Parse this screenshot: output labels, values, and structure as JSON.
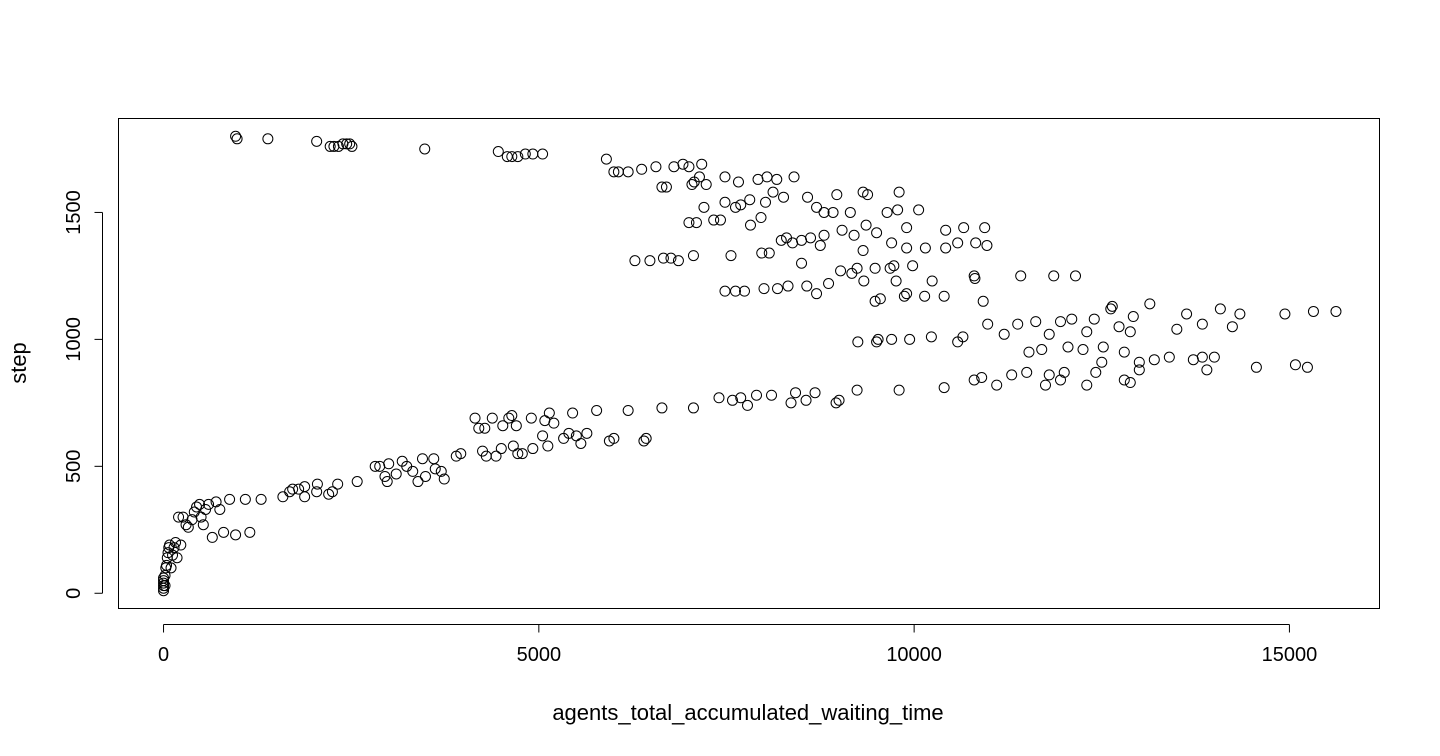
{
  "chart_data": {
    "type": "scatter",
    "title": "",
    "xlabel": "agents_total_accumulated_waiting_time",
    "ylabel": "step",
    "xlim": [
      -600,
      16200
    ],
    "ylim": [
      -60,
      1870
    ],
    "xticks": [
      0,
      5000,
      10000,
      15000
    ],
    "xtick_labels": [
      "0",
      "5000",
      "10000",
      "15000"
    ],
    "yticks": [
      0,
      500,
      1000,
      1500
    ],
    "ytick_labels": [
      "0",
      "500",
      "1000",
      "1500"
    ],
    "grid": false,
    "legend": "none",
    "marker": "open-circle",
    "color": "#000000",
    "points": [
      [
        0,
        10
      ],
      [
        0,
        20
      ],
      [
        0,
        30
      ],
      [
        0,
        40
      ],
      [
        0,
        50
      ],
      [
        0,
        60
      ],
      [
        20,
        30
      ],
      [
        20,
        70
      ],
      [
        30,
        100
      ],
      [
        40,
        110
      ],
      [
        50,
        140
      ],
      [
        60,
        160
      ],
      [
        70,
        180
      ],
      [
        80,
        190
      ],
      [
        100,
        100
      ],
      [
        120,
        150
      ],
      [
        140,
        180
      ],
      [
        160,
        200
      ],
      [
        180,
        140
      ],
      [
        200,
        300
      ],
      [
        230,
        190
      ],
      [
        260,
        300
      ],
      [
        300,
        270
      ],
      [
        330,
        260
      ],
      [
        380,
        290
      ],
      [
        410,
        320
      ],
      [
        440,
        340
      ],
      [
        480,
        350
      ],
      [
        500,
        300
      ],
      [
        530,
        270
      ],
      [
        560,
        330
      ],
      [
        600,
        350
      ],
      [
        650,
        220
      ],
      [
        700,
        360
      ],
      [
        750,
        330
      ],
      [
        800,
        240
      ],
      [
        880,
        370
      ],
      [
        960,
        230
      ],
      [
        1090,
        370
      ],
      [
        1150,
        240
      ],
      [
        1300,
        370
      ],
      [
        1590,
        380
      ],
      [
        1680,
        400
      ],
      [
        1720,
        410
      ],
      [
        1800,
        410
      ],
      [
        1880,
        420
      ],
      [
        1880,
        380
      ],
      [
        2040,
        400
      ],
      [
        2050,
        430
      ],
      [
        2200,
        390
      ],
      [
        2250,
        400
      ],
      [
        2320,
        430
      ],
      [
        2580,
        440
      ],
      [
        2820,
        500
      ],
      [
        2880,
        500
      ],
      [
        2950,
        460
      ],
      [
        2980,
        440
      ],
      [
        3000,
        510
      ],
      [
        3100,
        470
      ],
      [
        3180,
        520
      ],
      [
        3240,
        500
      ],
      [
        3320,
        480
      ],
      [
        3390,
        440
      ],
      [
        3450,
        530
      ],
      [
        3490,
        460
      ],
      [
        3600,
        530
      ],
      [
        3620,
        490
      ],
      [
        3700,
        480
      ],
      [
        3740,
        450
      ],
      [
        3900,
        540
      ],
      [
        3960,
        550
      ],
      [
        4150,
        690
      ],
      [
        4200,
        650
      ],
      [
        4250,
        560
      ],
      [
        4280,
        650
      ],
      [
        4300,
        540
      ],
      [
        4380,
        690
      ],
      [
        4430,
        540
      ],
      [
        4500,
        570
      ],
      [
        4520,
        660
      ],
      [
        4600,
        690
      ],
      [
        4640,
        700
      ],
      [
        4660,
        580
      ],
      [
        4700,
        660
      ],
      [
        4720,
        550
      ],
      [
        4780,
        550
      ],
      [
        4900,
        690
      ],
      [
        4920,
        570
      ],
      [
        5050,
        620
      ],
      [
        5080,
        680
      ],
      [
        5120,
        580
      ],
      [
        5140,
        710
      ],
      [
        5200,
        670
      ],
      [
        5330,
        610
      ],
      [
        5400,
        630
      ],
      [
        5450,
        710
      ],
      [
        5500,
        620
      ],
      [
        5560,
        590
      ],
      [
        5640,
        630
      ],
      [
        5770,
        720
      ],
      [
        5940,
        600
      ],
      [
        6000,
        610
      ],
      [
        6190,
        720
      ],
      [
        6400,
        600
      ],
      [
        6430,
        610
      ],
      [
        6640,
        730
      ],
      [
        7060,
        730
      ],
      [
        7400,
        770
      ],
      [
        7580,
        760
      ],
      [
        7690,
        770
      ],
      [
        7780,
        740
      ],
      [
        7900,
        780
      ],
      [
        8100,
        780
      ],
      [
        8360,
        750
      ],
      [
        8420,
        790
      ],
      [
        8560,
        760
      ],
      [
        8680,
        790
      ],
      [
        8960,
        750
      ],
      [
        9000,
        760
      ],
      [
        9240,
        800
      ],
      [
        9800,
        800
      ],
      [
        10400,
        810
      ],
      [
        10800,
        840
      ],
      [
        10900,
        850
      ],
      [
        11100,
        820
      ],
      [
        11300,
        860
      ],
      [
        11500,
        870
      ],
      [
        11750,
        820
      ],
      [
        11800,
        860
      ],
      [
        11950,
        840
      ],
      [
        12000,
        870
      ],
      [
        12300,
        820
      ],
      [
        12420,
        870
      ],
      [
        12500,
        910
      ],
      [
        12800,
        840
      ],
      [
        12880,
        830
      ],
      [
        13000,
        880
      ],
      [
        13200,
        920
      ],
      [
        13400,
        930
      ],
      [
        13840,
        930
      ],
      [
        13900,
        880
      ],
      [
        14000,
        930
      ],
      [
        14560,
        890
      ],
      [
        15080,
        900
      ],
      [
        15240,
        890
      ],
      [
        9250,
        990
      ],
      [
        9500,
        990
      ],
      [
        9520,
        1000
      ],
      [
        9700,
        1000
      ],
      [
        9940,
        1000
      ],
      [
        10230,
        1010
      ],
      [
        10580,
        990
      ],
      [
        10650,
        1010
      ],
      [
        11200,
        1020
      ],
      [
        11380,
        1060
      ],
      [
        11530,
        950
      ],
      [
        11620,
        1070
      ],
      [
        11700,
        960
      ],
      [
        11800,
        1020
      ],
      [
        11950,
        1070
      ],
      [
        12050,
        970
      ],
      [
        12100,
        1080
      ],
      [
        12250,
        960
      ],
      [
        12300,
        1030
      ],
      [
        12400,
        1080
      ],
      [
        12520,
        970
      ],
      [
        12620,
        1120
      ],
      [
        12640,
        1130
      ],
      [
        12730,
        1050
      ],
      [
        12800,
        950
      ],
      [
        12880,
        1030
      ],
      [
        12920,
        1090
      ],
      [
        13000,
        910
      ],
      [
        13140,
        1140
      ],
      [
        13500,
        1040
      ],
      [
        13630,
        1100
      ],
      [
        13720,
        920
      ],
      [
        13840,
        1060
      ],
      [
        14080,
        1120
      ],
      [
        14240,
        1050
      ],
      [
        14340,
        1100
      ],
      [
        14940,
        1100
      ],
      [
        15320,
        1110
      ],
      [
        15620,
        1110
      ],
      [
        10920,
        1150
      ],
      [
        10980,
        1060
      ],
      [
        7480,
        1190
      ],
      [
        7620,
        1190
      ],
      [
        7740,
        1190
      ],
      [
        8000,
        1200
      ],
      [
        8180,
        1200
      ],
      [
        8320,
        1210
      ],
      [
        8570,
        1210
      ],
      [
        8700,
        1180
      ],
      [
        8860,
        1220
      ],
      [
        9020,
        1270
      ],
      [
        9170,
        1260
      ],
      [
        9240,
        1280
      ],
      [
        9330,
        1230
      ],
      [
        9480,
        1150
      ],
      [
        9550,
        1160
      ],
      [
        9680,
        1280
      ],
      [
        9730,
        1290
      ],
      [
        9760,
        1230
      ],
      [
        9870,
        1170
      ],
      [
        9900,
        1180
      ],
      [
        9980,
        1290
      ],
      [
        10140,
        1170
      ],
      [
        10240,
        1230
      ],
      [
        10400,
        1170
      ],
      [
        10800,
        1250
      ],
      [
        10810,
        1240
      ],
      [
        11420,
        1250
      ],
      [
        11860,
        1250
      ],
      [
        12150,
        1250
      ],
      [
        6280,
        1310
      ],
      [
        6480,
        1310
      ],
      [
        6660,
        1320
      ],
      [
        6760,
        1320
      ],
      [
        6860,
        1310
      ],
      [
        7060,
        1330
      ],
      [
        7560,
        1330
      ],
      [
        7970,
        1340
      ],
      [
        8070,
        1340
      ],
      [
        8380,
        1380
      ],
      [
        8500,
        1300
      ],
      [
        8750,
        1370
      ],
      [
        9320,
        1350
      ],
      [
        9480,
        1280
      ],
      [
        9700,
        1380
      ],
      [
        9900,
        1360
      ],
      [
        10150,
        1360
      ],
      [
        10420,
        1360
      ],
      [
        10580,
        1380
      ],
      [
        10820,
        1380
      ],
      [
        10970,
        1370
      ],
      [
        7000,
        1460
      ],
      [
        7100,
        1460
      ],
      [
        7200,
        1520
      ],
      [
        7330,
        1470
      ],
      [
        7420,
        1470
      ],
      [
        7480,
        1540
      ],
      [
        7620,
        1520
      ],
      [
        7690,
        1530
      ],
      [
        7820,
        1450
      ],
      [
        7960,
        1480
      ],
      [
        8020,
        1540
      ],
      [
        8230,
        1390
      ],
      [
        8300,
        1400
      ],
      [
        8500,
        1390
      ],
      [
        8620,
        1400
      ],
      [
        8800,
        1410
      ],
      [
        8920,
        1500
      ],
      [
        9040,
        1430
      ],
      [
        9200,
        1410
      ],
      [
        9360,
        1450
      ],
      [
        9500,
        1420
      ],
      [
        9640,
        1500
      ],
      [
        9780,
        1510
      ],
      [
        9900,
        1440
      ],
      [
        10060,
        1510
      ],
      [
        10420,
        1430
      ],
      [
        10660,
        1440
      ],
      [
        10940,
        1440
      ],
      [
        5900,
        1710
      ],
      [
        6000,
        1660
      ],
      [
        6060,
        1660
      ],
      [
        6190,
        1660
      ],
      [
        6370,
        1670
      ],
      [
        6560,
        1680
      ],
      [
        6640,
        1600
      ],
      [
        6700,
        1600
      ],
      [
        6800,
        1680
      ],
      [
        6920,
        1690
      ],
      [
        7000,
        1680
      ],
      [
        7040,
        1610
      ],
      [
        7070,
        1620
      ],
      [
        7140,
        1640
      ],
      [
        7170,
        1690
      ],
      [
        7230,
        1610
      ],
      [
        7480,
        1640
      ],
      [
        7660,
        1620
      ],
      [
        7810,
        1550
      ],
      [
        7920,
        1630
      ],
      [
        8040,
        1640
      ],
      [
        8120,
        1580
      ],
      [
        8170,
        1630
      ],
      [
        8260,
        1560
      ],
      [
        8400,
        1640
      ],
      [
        8580,
        1560
      ],
      [
        8700,
        1520
      ],
      [
        8800,
        1500
      ],
      [
        8970,
        1570
      ],
      [
        9150,
        1500
      ],
      [
        9320,
        1580
      ],
      [
        9380,
        1570
      ],
      [
        9800,
        1580
      ],
      [
        4460,
        1740
      ],
      [
        4580,
        1720
      ],
      [
        4640,
        1720
      ],
      [
        4720,
        1720
      ],
      [
        4820,
        1730
      ],
      [
        4920,
        1730
      ],
      [
        5050,
        1730
      ],
      [
        3480,
        1750
      ],
      [
        2040,
        1780
      ],
      [
        2220,
        1760
      ],
      [
        2270,
        1760
      ],
      [
        2330,
        1760
      ],
      [
        2390,
        1770
      ],
      [
        2440,
        1770
      ],
      [
        2480,
        1770
      ],
      [
        2510,
        1760
      ],
      [
        960,
        1800
      ],
      [
        980,
        1790
      ],
      [
        1390,
        1790
      ]
    ]
  }
}
